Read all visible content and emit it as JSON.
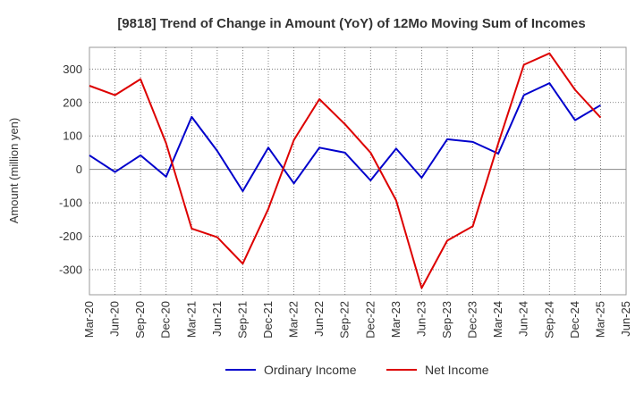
{
  "chart_data": {
    "type": "line",
    "title": "[9818]  Trend of Change in Amount (YoY) of 12Mo Moving Sum of Incomes",
    "xlabel": "",
    "ylabel": "Amount (million yen)",
    "ylim": [
      -375,
      365
    ],
    "yticks": [
      -300,
      -200,
      -100,
      0,
      100,
      200,
      300
    ],
    "grid": true,
    "legend_position": "bottom",
    "categories": [
      "Mar-20",
      "Jun-20",
      "Sep-20",
      "Dec-20",
      "Mar-21",
      "Jun-21",
      "Sep-21",
      "Dec-21",
      "Mar-22",
      "Jun-22",
      "Sep-22",
      "Dec-22",
      "Mar-23",
      "Jun-23",
      "Sep-23",
      "Dec-23",
      "Mar-24",
      "Jun-24",
      "Sep-24",
      "Dec-24",
      "Mar-25",
      "Jun-25"
    ],
    "series": [
      {
        "name": "Ordinary Income",
        "color": "#0000cc",
        "values": [
          42,
          -8,
          42,
          -22,
          157,
          55,
          -65,
          65,
          -42,
          65,
          50,
          -33,
          62,
          -25,
          90,
          82,
          47,
          222,
          258,
          147,
          192,
          null
        ]
      },
      {
        "name": "Net Income",
        "color": "#dd0000",
        "values": [
          250,
          222,
          270,
          78,
          -177,
          -203,
          -282,
          -118,
          88,
          210,
          135,
          50,
          -93,
          -355,
          -213,
          -170,
          78,
          313,
          347,
          238,
          155,
          null
        ]
      }
    ]
  }
}
